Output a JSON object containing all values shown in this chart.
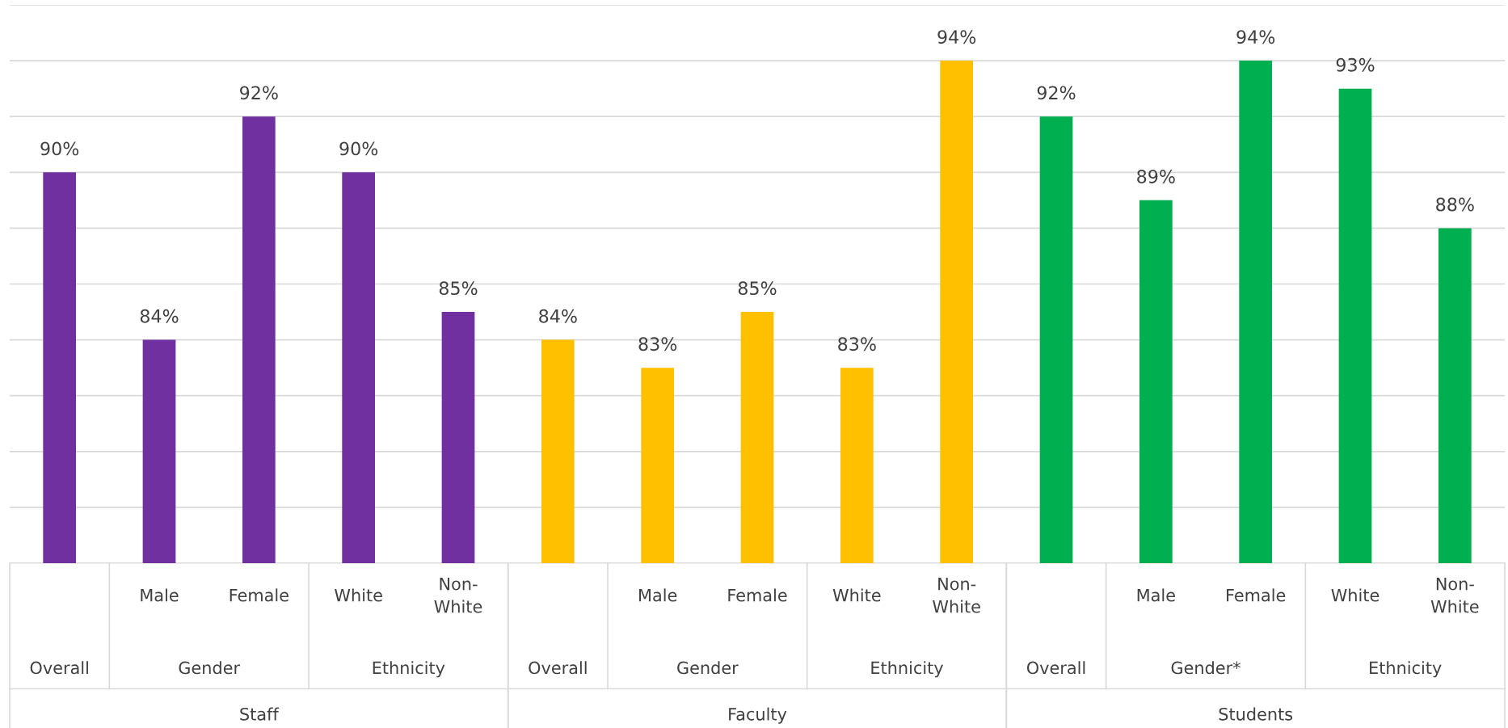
{
  "chart_data": {
    "type": "bar",
    "categories": [
      null,
      "Male",
      "Female",
      "White",
      "Non-White",
      null,
      "Male",
      "Female",
      "White",
      "Non-White",
      null,
      "Male",
      "Female",
      "White",
      "Non-White"
    ],
    "values": [
      90,
      84,
      92,
      90,
      85,
      84,
      83,
      85,
      83,
      94,
      92,
      89,
      94,
      93,
      88
    ],
    "value_labels": [
      "90%",
      "84%",
      "92%",
      "90%",
      "85%",
      "84%",
      "83%",
      "85%",
      "83%",
      "94%",
      "92%",
      "89%",
      "94%",
      "93%",
      "88%"
    ],
    "colors": [
      "#7030a0",
      "#7030a0",
      "#7030a0",
      "#7030a0",
      "#7030a0",
      "#ffc000",
      "#ffc000",
      "#ffc000",
      "#ffc000",
      "#ffc000",
      "#00b050",
      "#00b050",
      "#00b050",
      "#00b050",
      "#00b050"
    ],
    "ylim": [
      76,
      96
    ],
    "yticks": [
      {
        "value": 76,
        "label": null
      },
      {
        "value": 78,
        "label": null
      },
      {
        "value": 80,
        "label": null
      },
      {
        "value": 82,
        "label": null
      },
      {
        "value": 84,
        "label": null
      },
      {
        "value": 86,
        "label": null
      },
      {
        "value": 88,
        "label": null
      },
      {
        "value": 90,
        "label": null
      },
      {
        "value": 92,
        "label": null
      },
      {
        "value": 94,
        "label": null
      },
      {
        "value": 96,
        "label": null
      }
    ],
    "grid": "y",
    "annotations": [
      "Overall",
      "Gender",
      "Ethnicity",
      "Overall",
      "Gender",
      "Ethnicity",
      "Overall",
      "Gender*",
      "Ethnicity",
      "Staff",
      "Faculty",
      "Students"
    ]
  }
}
